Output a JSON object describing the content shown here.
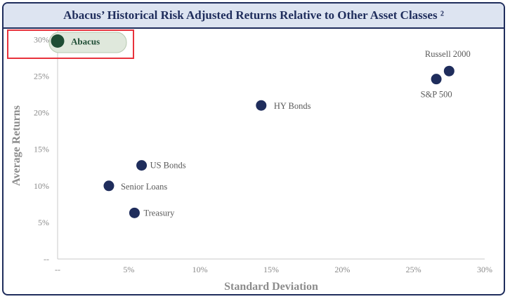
{
  "colors": {
    "frame": "#1f2d5c",
    "title_bg": "#dde4f1",
    "point": "#1f2d5c",
    "highlight_point": "#1e4d34",
    "highlight_box": "#e8323c",
    "pill_fill": "#dfe8dc",
    "pill_stroke": "#b7c9b0",
    "axis_text": "#8a8a8a"
  },
  "chart_data": {
    "type": "scatter",
    "title": "Abacus’ Historical Risk Adjusted Returns Relative to Other Asset Classes ²",
    "xlabel": "Standard Deviation",
    "ylabel": "Average Returns",
    "xlim": [
      0,
      30
    ],
    "ylim": [
      0,
      31
    ],
    "x_ticks": [
      "--",
      "5%",
      "10%",
      "15%",
      "20%",
      "25%",
      "30%"
    ],
    "y_ticks": [
      "--",
      "5%",
      "10%",
      "15%",
      "20%",
      "25%",
      "30%"
    ],
    "grid": false,
    "points": [
      {
        "label": "Abacus",
        "x": 0.0,
        "y": 29.8,
        "highlight": true
      },
      {
        "label": "Russell 2000",
        "x": 27.5,
        "y": 25.7
      },
      {
        "label": "S&P 500",
        "x": 26.6,
        "y": 24.6
      },
      {
        "label": "HY Bonds",
        "x": 14.3,
        "y": 21.0
      },
      {
        "label": "US Bonds",
        "x": 5.9,
        "y": 12.8
      },
      {
        "label": "Senior Loans",
        "x": 3.6,
        "y": 10.0
      },
      {
        "label": "Treasury",
        "x": 5.4,
        "y": 6.3
      }
    ]
  }
}
